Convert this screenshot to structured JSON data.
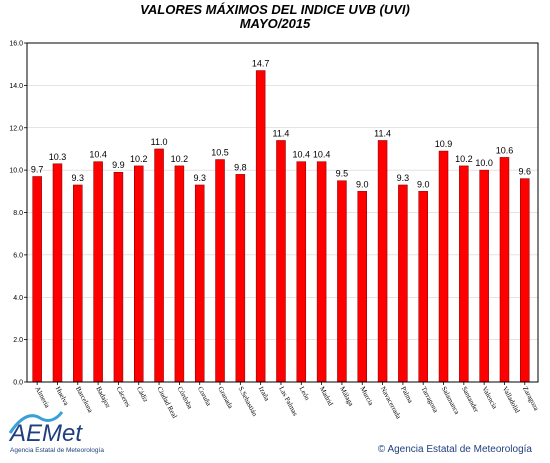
{
  "chart_data": {
    "type": "bar",
    "title": "VALORES MÁXIMOS DEL INDICE UVB (UVI)",
    "subtitle": "MAYO/2015",
    "xlabel": "",
    "ylabel": "",
    "ylim": [
      0,
      16
    ],
    "yticks": [
      0,
      2,
      4,
      6,
      8,
      10,
      12,
      14,
      16
    ],
    "grid": true,
    "bar_color": "#ff0000",
    "categories": [
      "Almería",
      "Huelva",
      "Barcelona",
      "Badajoz",
      "Cáceres",
      "Cádiz",
      "Ciudad Real",
      "Córdoba",
      "Coruña",
      "Granada",
      "S.Sebastián",
      "Izaña",
      "Las Palmas",
      "León",
      "Madrid",
      "Málaga",
      "Murcia",
      "Navacerrada",
      "Palma",
      "Tarragona",
      "Salamanca",
      "Santander",
      "Valencia",
      "Valladolid",
      "Zaragoza"
    ],
    "values": [
      9.7,
      10.3,
      9.3,
      10.4,
      9.9,
      10.2,
      11.0,
      10.2,
      9.3,
      10.5,
      9.8,
      14.7,
      11.4,
      10.4,
      10.4,
      9.5,
      9.0,
      11.4,
      9.3,
      9.0,
      10.9,
      10.2,
      10.0,
      10.6,
      9.6
    ],
    "value_labels": [
      "9.7",
      "10.3",
      "9.3",
      "10.4",
      "9.9",
      "10.2",
      "11.0",
      "10.2",
      "9.3",
      "10.5",
      "9.8",
      "14.7",
      "11.4",
      "10.4",
      "10.4",
      "9.5",
      "9.0",
      "11.4",
      "9.3",
      "9.0",
      "10.9",
      "10.2",
      "10.0",
      "10.6",
      "9.6"
    ]
  },
  "logo": {
    "brand_name": "AEMet",
    "subtitle": "Agencia Estatal de Meteorología",
    "colors": {
      "wave": "#3aa0d8",
      "text": "#1f3f7f"
    }
  },
  "footer": {
    "copyright": "© Agencia Estatal de Meteorología"
  }
}
